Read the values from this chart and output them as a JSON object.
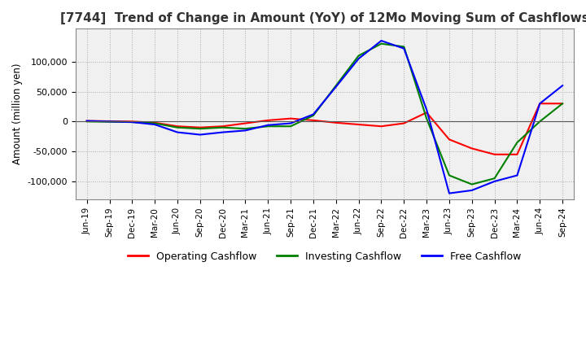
{
  "title": "[7744]  Trend of Change in Amount (YoY) of 12Mo Moving Sum of Cashflows",
  "ylabel": "Amount (million yen)",
  "x_labels": [
    "Jun-19",
    "Sep-19",
    "Dec-19",
    "Mar-20",
    "Jun-20",
    "Sep-20",
    "Dec-20",
    "Mar-21",
    "Jun-21",
    "Sep-21",
    "Dec-21",
    "Mar-22",
    "Jun-22",
    "Sep-22",
    "Dec-22",
    "Mar-23",
    "Jun-23",
    "Sep-23",
    "Dec-23",
    "Mar-24",
    "Jun-24",
    "Sep-24"
  ],
  "operating": [
    1000,
    500,
    0,
    -2000,
    -8000,
    -10000,
    -8000,
    -3000,
    2000,
    5000,
    2000,
    -2000,
    -5000,
    -8000,
    -3000,
    15000,
    -30000,
    -45000,
    -55000,
    -55000,
    30000,
    30000
  ],
  "investing": [
    0,
    -500,
    -1000,
    -3000,
    -10000,
    -12000,
    -10000,
    -12000,
    -8000,
    -8000,
    10000,
    60000,
    110000,
    130000,
    125000,
    5000,
    -90000,
    -105000,
    -95000,
    -35000,
    0,
    30000
  ],
  "free": [
    1000,
    0,
    -1000,
    -5000,
    -18000,
    -22000,
    -18000,
    -15000,
    -6000,
    -3000,
    12000,
    58000,
    105000,
    135000,
    122000,
    20000,
    -120000,
    -115000,
    -100000,
    -90000,
    30000,
    60000
  ],
  "ylim": [
    -130000,
    155000
  ],
  "yticks": [
    -100000,
    -50000,
    0,
    50000,
    100000
  ],
  "operating_color": "#ff0000",
  "investing_color": "#008000",
  "free_color": "#0000ff",
  "grid_color": "#aaaaaa",
  "bg_plot": "#f0f0f0",
  "background_color": "#ffffff",
  "title_fontsize": 11,
  "legend_labels": [
    "Operating Cashflow",
    "Investing Cashflow",
    "Free Cashflow"
  ]
}
